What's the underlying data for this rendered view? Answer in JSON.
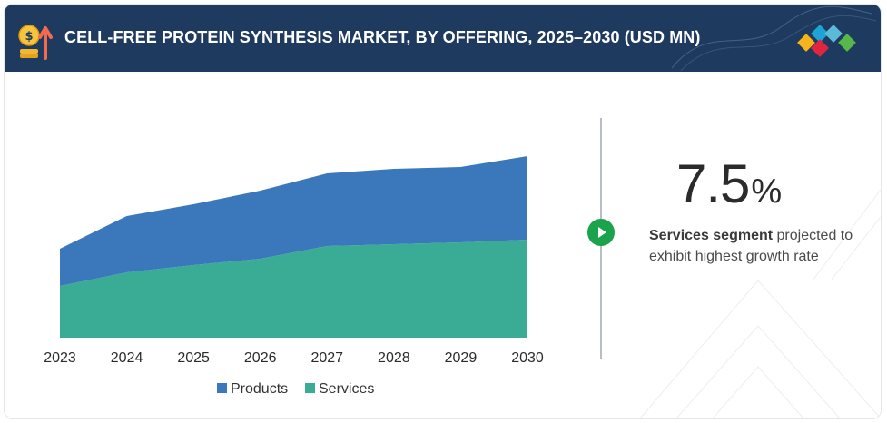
{
  "header": {
    "title": "CELL-FREE PROTEIN SYNTHESIS MARKET, BY OFFERING, 2025–2030 (USD MN)",
    "icon": "coin-growth-icon",
    "logo": "brand-diamonds-logo",
    "background_color": "#1f3a5f"
  },
  "chart_data": {
    "type": "area",
    "stacked": true,
    "categories": [
      "2023",
      "2024",
      "2025",
      "2026",
      "2027",
      "2028",
      "2029",
      "2030"
    ],
    "series": [
      {
        "name": "Services",
        "color": "#3aab95",
        "values": [
          57,
          72,
          80,
          87,
          101,
          103,
          105,
          108
        ]
      },
      {
        "name": "Products",
        "color": "#3a78bb",
        "values": [
          41,
          62,
          67,
          75,
          80,
          83,
          83,
          92
        ]
      }
    ],
    "title": "",
    "xlabel": "",
    "ylabel": "",
    "grid": false,
    "y_axis_visible": false,
    "legend_position": "bottom"
  },
  "legend": {
    "products_label": "Products",
    "services_label": "Services"
  },
  "highlight": {
    "value": "7.5",
    "unit": "%",
    "desc_bold": "Services segment",
    "desc_rest": " projected to exhibit highest growth rate",
    "icon": "play-arrow-icon",
    "icon_color": "#1aa34a"
  }
}
